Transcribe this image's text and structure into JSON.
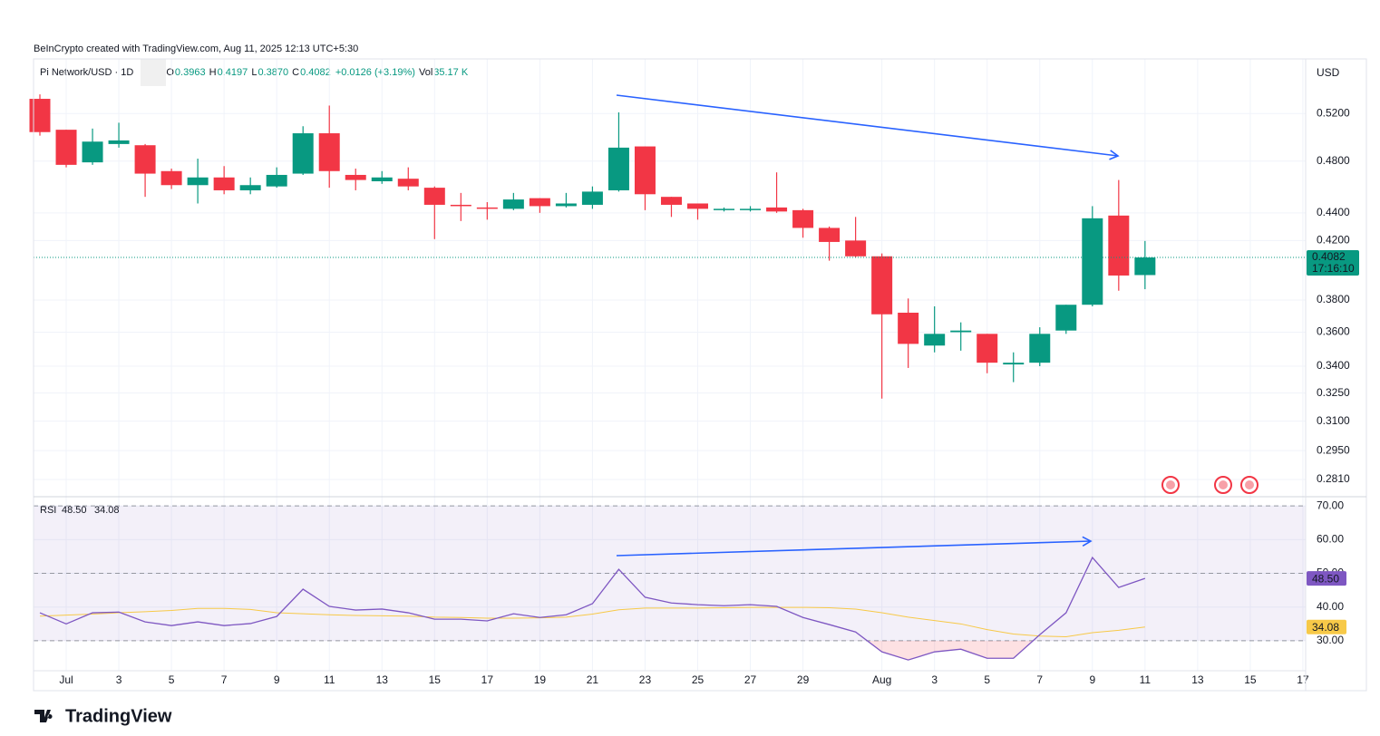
{
  "header": {
    "credit": "BeInCrypto created with TradingView.com, Aug 11, 2025 12:13 UTC+5:30",
    "symbol": "Pi Network/USD · 1D",
    "ohlc": [
      {
        "label": "O",
        "value": "0.3963"
      },
      {
        "label": "H",
        "value": "0.4197"
      },
      {
        "label": "L",
        "value": "0.3870"
      },
      {
        "label": "C",
        "value": "0.4082"
      }
    ],
    "change": "+0.0126 (+3.19%)",
    "volume_label": "Vol",
    "volume": "35.17 K",
    "currency": "USD"
  },
  "footer": {
    "brand": "TradingView"
  },
  "chart_data": [
    {
      "type": "candlestick",
      "log_scale": true,
      "grid": true,
      "up_color": "#089981",
      "down_color": "#f23645",
      "categories": [
        null,
        "Jul",
        null,
        "3",
        null,
        "5",
        null,
        "7",
        null,
        "9",
        null,
        "11",
        null,
        "13",
        null,
        "15",
        null,
        "17",
        null,
        "19",
        null,
        "21",
        null,
        "23",
        null,
        "25",
        null,
        "27",
        null,
        "29",
        null,
        null,
        "Aug",
        null,
        "3",
        null,
        "5",
        null,
        "7",
        null,
        "9",
        null,
        "11",
        null,
        "13",
        null,
        "15",
        null,
        "17"
      ],
      "open": [
        0.533,
        0.506,
        0.479,
        0.494,
        0.493,
        0.472,
        0.461,
        0.467,
        0.457,
        0.46,
        0.47,
        0.503,
        0.469,
        0.464,
        0.466,
        0.459,
        0.446,
        0.444,
        0.443,
        0.451,
        0.445,
        0.446,
        0.457,
        0.492,
        0.452,
        0.447,
        0.442,
        0.442,
        0.444,
        0.442,
        0.429,
        0.42,
        0.409,
        0.372,
        0.352,
        0.36,
        0.359,
        0.341,
        0.342,
        0.361,
        0.377,
        0.438,
        0.3963,
        null,
        null,
        null,
        null,
        null,
        null
      ],
      "high": [
        0.537,
        0.506,
        0.507,
        0.512,
        0.494,
        0.474,
        0.482,
        0.476,
        0.467,
        0.475,
        0.509,
        0.527,
        0.474,
        0.472,
        0.475,
        0.46,
        0.455,
        0.448,
        0.455,
        0.451,
        0.455,
        0.46,
        0.521,
        0.492,
        0.452,
        0.447,
        0.444,
        0.445,
        0.471,
        0.443,
        0.43,
        0.437,
        0.411,
        0.381,
        0.376,
        0.366,
        0.359,
        0.348,
        0.363,
        0.377,
        0.445,
        0.465,
        0.4197,
        null,
        null,
        null,
        null,
        null,
        null
      ],
      "low": [
        0.501,
        0.475,
        0.477,
        0.491,
        0.452,
        0.458,
        0.447,
        0.454,
        0.454,
        0.459,
        0.469,
        0.459,
        0.457,
        0.462,
        0.457,
        0.421,
        0.434,
        0.435,
        0.442,
        0.44,
        0.444,
        0.443,
        0.456,
        0.442,
        0.437,
        0.435,
        0.441,
        0.441,
        0.44,
        0.422,
        0.406,
        0.408,
        0.322,
        0.339,
        0.348,
        0.349,
        0.336,
        0.331,
        0.34,
        0.359,
        0.376,
        0.386,
        0.387,
        null,
        null,
        null,
        null,
        null,
        null
      ],
      "close": [
        0.504,
        0.477,
        0.496,
        0.497,
        0.47,
        0.461,
        0.467,
        0.457,
        0.461,
        0.469,
        0.503,
        0.472,
        0.465,
        0.467,
        0.46,
        0.446,
        0.445,
        0.443,
        0.45,
        0.445,
        0.447,
        0.456,
        0.491,
        0.454,
        0.446,
        0.443,
        0.443,
        0.443,
        0.441,
        0.429,
        0.419,
        0.409,
        0.371,
        0.353,
        0.359,
        0.361,
        0.342,
        0.342,
        0.359,
        0.377,
        0.436,
        0.396,
        0.4082,
        null,
        null,
        null,
        null,
        null,
        null
      ],
      "ylim": [
        0.273,
        0.57
      ],
      "yticks": [
        {
          "value": 0.52,
          "label": "0.5200"
        },
        {
          "value": 0.48,
          "label": "0.4800"
        },
        {
          "value": 0.44,
          "label": "0.4400"
        },
        {
          "value": 0.42,
          "label": "0.4200"
        },
        {
          "value": 0.38,
          "label": "0.3800"
        },
        {
          "value": 0.36,
          "label": "0.3600"
        },
        {
          "value": 0.34,
          "label": "0.3400"
        },
        {
          "value": 0.325,
          "label": "0.3250"
        },
        {
          "value": 0.31,
          "label": "0.3100"
        },
        {
          "value": 0.295,
          "label": "0.2950"
        },
        {
          "value": 0.281,
          "label": "0.2810"
        }
      ],
      "last_price": 0.4082,
      "countdown": "17:16:10"
    },
    {
      "type": "line",
      "title": "RSI",
      "band": [
        30,
        70
      ],
      "midline": 50,
      "band_color": "#7e57c2",
      "series": [
        {
          "color": "#7e57c2",
          "current_label": "48.50",
          "values": [
            38.3,
            35.0,
            38.3,
            38.5,
            35.6,
            34.5,
            35.6,
            34.5,
            35.1,
            37.2,
            45.3,
            40.2,
            39.1,
            39.4,
            38.3,
            36.4,
            36.4,
            35.9,
            38.0,
            36.9,
            37.7,
            41.0,
            51.2,
            42.9,
            41.2,
            40.7,
            40.4,
            40.7,
            40.2,
            36.9,
            34.8,
            32.6,
            26.7,
            24.3,
            26.7,
            27.5,
            24.8,
            24.8,
            31.8,
            38.3,
            54.7,
            45.8,
            48.5,
            null,
            null,
            null,
            null,
            null,
            null
          ]
        },
        {
          "color": "#f7c948",
          "current_label": "34.08",
          "values": [
            37.3,
            37.6,
            37.9,
            38.3,
            38.6,
            39.0,
            39.6,
            39.6,
            39.3,
            38.3,
            38.0,
            37.7,
            37.5,
            37.4,
            37.3,
            37.0,
            36.9,
            36.7,
            36.7,
            36.8,
            37.0,
            37.9,
            39.2,
            39.7,
            39.7,
            39.7,
            39.8,
            39.9,
            39.9,
            39.9,
            39.8,
            39.4,
            38.3,
            37.0,
            36.0,
            35.0,
            33.3,
            32.0,
            31.4,
            31.2,
            32.4,
            33.1,
            34.08,
            null,
            null,
            null,
            null,
            null,
            null
          ]
        }
      ],
      "ylim": [
        21.1,
        72.2
      ],
      "yticks": [
        {
          "value": 70,
          "label": "70.00"
        },
        {
          "value": 60,
          "label": "60.00"
        },
        {
          "value": 50,
          "label": "50.00"
        },
        {
          "value": 40,
          "label": "40.00"
        },
        {
          "value": 30,
          "label": "30.00"
        }
      ]
    }
  ]
}
